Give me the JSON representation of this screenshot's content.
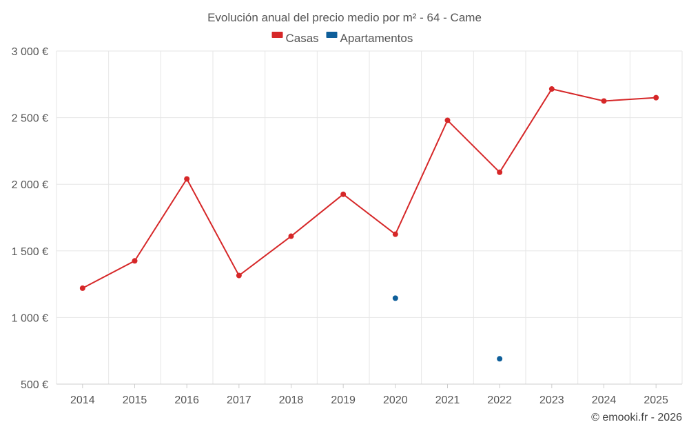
{
  "chart_data": {
    "type": "line",
    "title": "Evolución anual del precio medio por m² - 64 - Came",
    "categories": [
      "2014",
      "2015",
      "2016",
      "2017",
      "2018",
      "2019",
      "2020",
      "2021",
      "2022",
      "2023",
      "2024",
      "2025"
    ],
    "series": [
      {
        "name": "Casas",
        "color": "#d62728",
        "values": [
          1220,
          1425,
          2040,
          1315,
          1610,
          1925,
          1625,
          2480,
          2090,
          2715,
          2625,
          2650
        ]
      },
      {
        "name": "Apartamentos",
        "color": "#0f5f9a",
        "values": [
          null,
          null,
          null,
          null,
          null,
          null,
          1145,
          null,
          690,
          null,
          null,
          null
        ]
      }
    ],
    "yticks": [
      500,
      1000,
      1500,
      2000,
      2500,
      3000
    ],
    "ytick_labels": [
      "500 €",
      "1 000 €",
      "1 500 €",
      "2 000 €",
      "2 500 €",
      "3 000 €"
    ],
    "ylim": [
      500,
      3000
    ],
    "xlabel": "",
    "ylabel": "",
    "grid": true,
    "legend_position": "top-center"
  },
  "credit": "© emooki.fr - 2026"
}
